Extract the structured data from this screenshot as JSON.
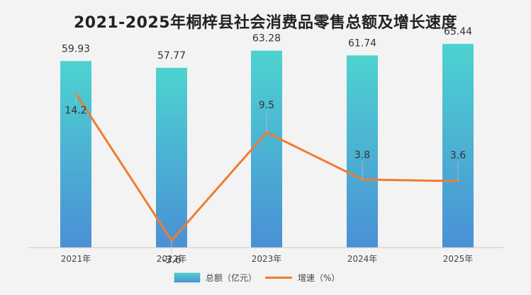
{
  "chart_data": {
    "type": "bar",
    "title": "2021-2025年桐梓县社会消费品零售总额及增长速度",
    "categories": [
      "2021年",
      "2022年",
      "2023年",
      "2024年",
      "2025年"
    ],
    "series": [
      {
        "name": "总额（亿元）",
        "type": "bar",
        "values": [
          59.93,
          57.77,
          63.28,
          61.74,
          65.44
        ],
        "labels": [
          "59.93",
          "57.77",
          "63.28",
          "61.74",
          "65.44"
        ],
        "color": "#3fc1c9"
      },
      {
        "name": "增速（%）",
        "type": "line",
        "values": [
          14.2,
          -3.6,
          9.5,
          3.8,
          3.6
        ],
        "labels": [
          "14.2",
          "-3.6",
          "9.5",
          "3.8",
          "3.6"
        ],
        "color": "#ed7d31"
      }
    ],
    "bar_axis_range": [
      0,
      70
    ],
    "line_axis_range": [
      -6,
      18
    ],
    "gridlines": false,
    "legend_position": "bottom"
  }
}
